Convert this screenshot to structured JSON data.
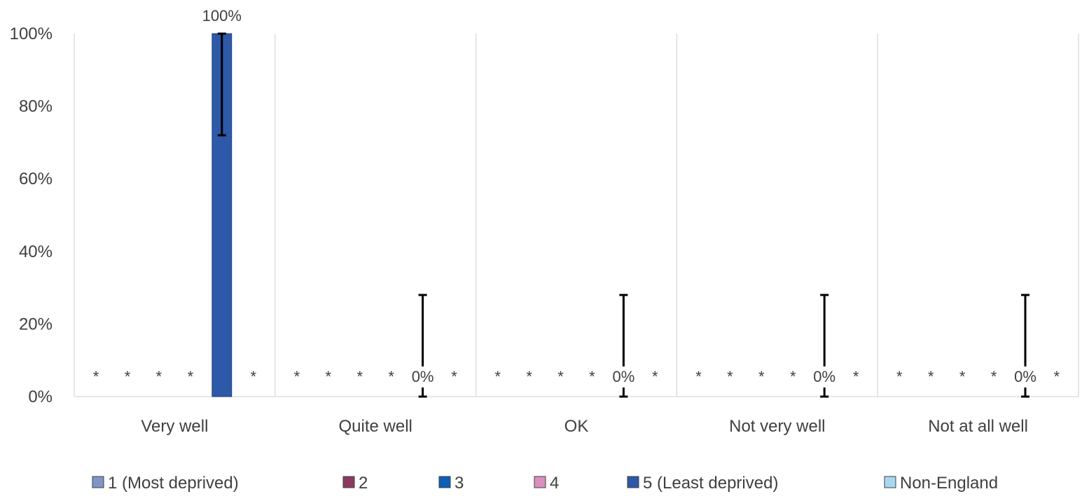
{
  "chart_data": {
    "type": "bar",
    "categories": [
      "Very well",
      "Quite well",
      "OK",
      "Not very well",
      "Not at all well"
    ],
    "series": [
      {
        "name": "1 (Most deprived)",
        "color": "#7f97c7",
        "values": [
          null,
          null,
          null,
          null,
          null
        ],
        "labels": [
          "*",
          "*",
          "*",
          "*",
          "*"
        ]
      },
      {
        "name": "2",
        "color": "#8b3a62",
        "values": [
          null,
          null,
          null,
          null,
          null
        ],
        "labels": [
          "*",
          "*",
          "*",
          "*",
          "*"
        ]
      },
      {
        "name": "3",
        "color": "#0d5fb8",
        "values": [
          null,
          null,
          null,
          null,
          null
        ],
        "labels": [
          "*",
          "*",
          "*",
          "*",
          "*"
        ]
      },
      {
        "name": "4",
        "color": "#d98fc0",
        "values": [
          null,
          null,
          null,
          null,
          null
        ],
        "labels": [
          "*",
          "*",
          "*",
          "*",
          "*"
        ]
      },
      {
        "name": "5 (Least deprived)",
        "color": "#2e59a8",
        "values": [
          100,
          0,
          0,
          0,
          0
        ],
        "labels": [
          "100%",
          "0%",
          "0%",
          "0%",
          "0%"
        ],
        "error_low": [
          72,
          0,
          0,
          0,
          0
        ],
        "error_high": [
          100,
          28,
          28,
          28,
          28
        ]
      },
      {
        "name": "Non-England",
        "color": "#a9d8ef",
        "values": [
          null,
          null,
          null,
          null,
          null
        ],
        "labels": [
          "*",
          "*",
          "*",
          "*",
          "*"
        ]
      }
    ],
    "ylim": [
      0,
      100
    ],
    "yticks": [
      0,
      20,
      40,
      60,
      80,
      100
    ],
    "ytick_labels": [
      "0%",
      "20%",
      "40%",
      "60%",
      "80%",
      "100%"
    ],
    "grid": "vertical category separators",
    "legend": "bottom"
  }
}
